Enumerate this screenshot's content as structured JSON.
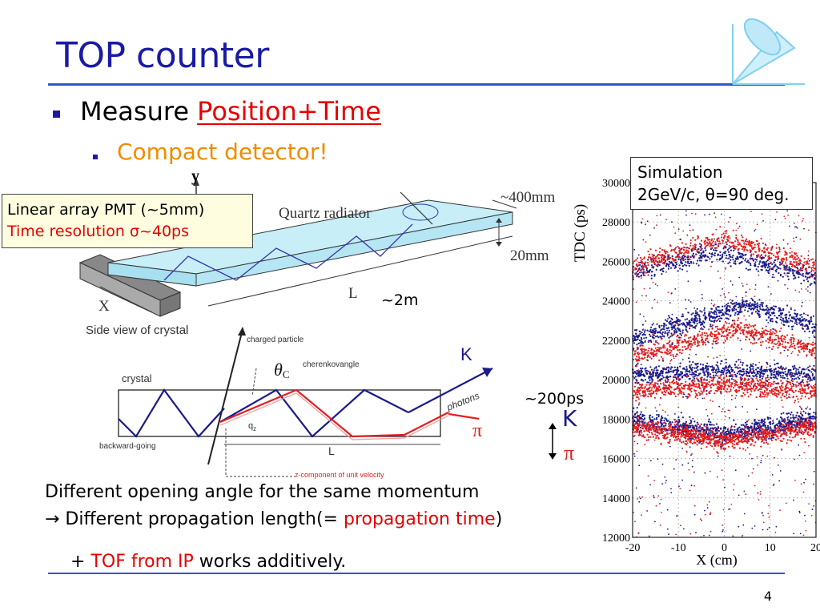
{
  "slide": {
    "title": "TOP counter",
    "bullet1_prefix": "Measure ",
    "bullet1_highlight": "Position+Time",
    "bullet2": "Compact detector!",
    "page_number": "4"
  },
  "callout": {
    "line1": "Linear array PMT (~5mm)",
    "line2": "Time resolution σ~40ps"
  },
  "crystal_side": {
    "y_axis": "y",
    "name": "Quartz radiator",
    "width_label": "~400mm",
    "thickness_label": "20mm",
    "length_label": "L",
    "x_label": "X",
    "caption": "Side view of crystal",
    "length_value": "~2m"
  },
  "cherenkov": {
    "charged_particle": "charged particle",
    "theta": "θ",
    "theta_sub": "C",
    "cherenkov_angle": "cherenkovangle",
    "crystal": "crystal",
    "photons": "photons",
    "backward": "backward-going",
    "qz": "q",
    "qz_sub": "z",
    "L": "L",
    "zcomp": "z-component of unit velocity",
    "K": "K",
    "pi": "π",
    "K2": "K",
    "pi2": "π",
    "dt": "~200ps"
  },
  "simulation": {
    "title_line1": "Simulation",
    "title_line2": "2GeV/c, θ=90 deg.",
    "ylabel": "TDC (ps)",
    "xlabel": "X (cm)",
    "y_ticks": [
      "30000",
      "28000",
      "26000",
      "24000",
      "22000",
      "20000",
      "18000",
      "16000",
      "14000",
      "12000"
    ],
    "x_ticks": [
      "-20",
      "-10",
      "0",
      "10",
      "20"
    ],
    "colors": {
      "kaon": "#1a1a8c",
      "pion": "#e61e1e"
    }
  },
  "chart_data": {
    "type": "scatter",
    "title": "Simulation 2GeV/c, θ=90 deg.",
    "xlabel": "X (cm)",
    "ylabel": "TDC (ps)",
    "xlim": [
      -20,
      20
    ],
    "ylim": [
      12000,
      30000
    ],
    "grid": true,
    "series": [
      {
        "name": "K",
        "color": "#1a1a8c"
      },
      {
        "name": "π",
        "color": "#e61e1e"
      }
    ]
  },
  "text": {
    "line1": "Different opening angle for the same momentum",
    "line2_arrow": "→",
    "line2_prefix": " Different propagation length(= ",
    "line2_highlight": "propagation time",
    "line2_suffix": ")",
    "line3_prefix": "+ ",
    "line3_highlight": "TOF from IP",
    "line3_suffix": " works additively."
  }
}
